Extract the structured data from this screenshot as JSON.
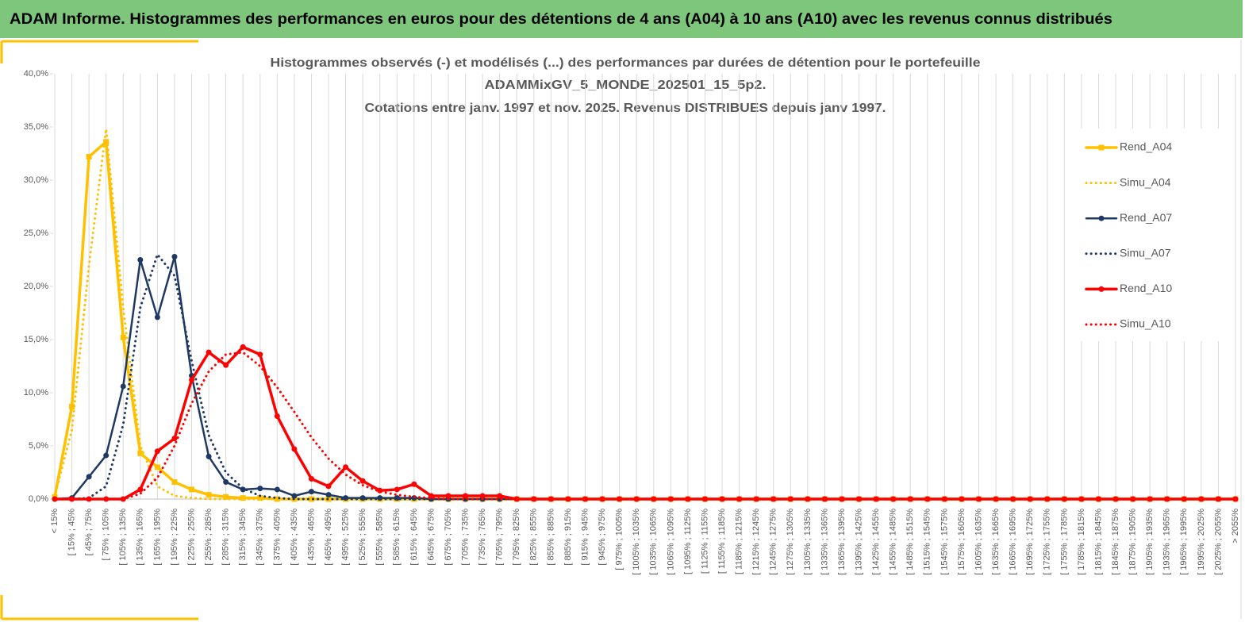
{
  "header": {
    "title": "ADAM Informe. Histogrammes des performances en euros pour des détentions de 4 ans (A04) à 10 ans (A10) avec les revenus connus distribués"
  },
  "chart_data": {
    "type": "line",
    "title": [
      "Histogrammes observés (-) et modélisés (...) des performances  par durées de détention pour le portefeuille",
      "ADAMMixGV_5_MONDE_202501_15_5p2.",
      "Cotations entre janv. 1997 et nov. 2025. Revenus DISTRIBUES depuis janv 1997."
    ],
    "categories": [
      "< 15%",
      "[ 15% ; 45%",
      "[ 45% ; 75%",
      "[ 75% ; 105%",
      "[ 105% ; 135%",
      "[ 135% ; 165%",
      "[ 165% ; 195%",
      "[ 195% ; 225%",
      "[ 225% ; 255%",
      "[ 255% ; 285%",
      "[ 285% ; 315%",
      "[ 315% ; 345%",
      "[ 345% ; 375%",
      "[ 375% ; 405%",
      "[ 405% ; 435%",
      "[ 435% ; 465%",
      "[ 465% ; 495%",
      "[ 495% ; 525%",
      "[ 525% ; 555%",
      "[ 555% ; 585%",
      "[ 585% ; 615%",
      "[ 615% ; 645%",
      "[ 645% ; 675%",
      "[ 675% ; 705%",
      "[ 705% ; 735%",
      "[ 735% ; 765%",
      "[ 765% ; 795%",
      "[ 795% ; 825%",
      "[ 825% ; 855%",
      "[ 855% ; 885%",
      "[ 885% ; 915%",
      "[ 915% ; 945%",
      "[ 945% ; 975%",
      "[ 975% ; 1005%",
      "[ 1005% ; 1035%",
      "[ 1035% ; 1065%",
      "[ 1065% ; 1095%",
      "[ 1095% ; 1125%",
      "[ 1125% ; 1155%",
      "[ 1155% ; 1185%",
      "[ 1185% ; 1215%",
      "[ 1215% ; 1245%",
      "[ 1245% ; 1275%",
      "[ 1275% ; 1305%",
      "[ 1305% ; 1335%",
      "[ 1335% ; 1365%",
      "[ 1365% ; 1395%",
      "[ 1395% ; 1425%",
      "[ 1425% ; 1455%",
      "[ 1455% ; 1485%",
      "[ 1485% ; 1515%",
      "[ 1515% ; 1545%",
      "[ 1545% ; 1575%",
      "[ 1575% ; 1605%",
      "[ 1605% ; 1635%",
      "[ 1635% ; 1665%",
      "[ 1665% ; 1695%",
      "[ 1695% ; 1725%",
      "[ 1725% ; 1755%",
      "[ 1755% ; 1785%",
      "[ 1785% ; 1815%",
      "[ 1815% ; 1845%",
      "[ 1845% ; 1875%",
      "[ 1875% ; 1905%",
      "[ 1905% ; 1935%",
      "[ 1935% ; 1965%",
      "[ 1965% ; 1995%",
      "[ 1995% ; 2025%",
      "[ 2025% ; 2055%",
      "> 2055%"
    ],
    "series": [
      {
        "name": "Rend_A04",
        "color": "#FFC000",
        "style": "solid",
        "marker": "square",
        "width": 3.5,
        "values": [
          0.2,
          8.7,
          32.2,
          33.6,
          15.2,
          4.3,
          3.0,
          1.6,
          0.9,
          0.4,
          0.2,
          0.1,
          0.1,
          0,
          0,
          0,
          0,
          0,
          0,
          0,
          0,
          0,
          0,
          0,
          0,
          0,
          0,
          0,
          0,
          0,
          0,
          0,
          0,
          0,
          0,
          0,
          0,
          0,
          0,
          0,
          0,
          0,
          0,
          0,
          0,
          0,
          0,
          0,
          0,
          0,
          0,
          0,
          0,
          0,
          0,
          0,
          0,
          0,
          0,
          0,
          0,
          0,
          0,
          0,
          0,
          0,
          0,
          0,
          0,
          0
        ]
      },
      {
        "name": "Simu_A04",
        "color": "#FFC000",
        "style": "dotted",
        "width": 3,
        "values": [
          0.3,
          6.5,
          22,
          34.8,
          18,
          5,
          1.2,
          0.3,
          0.1,
          0,
          0,
          0,
          0,
          0,
          0,
          0,
          0,
          0,
          0,
          0,
          0,
          0,
          0,
          0,
          0,
          0,
          0,
          0,
          0,
          0,
          0,
          0,
          0,
          0,
          0,
          0,
          0,
          0,
          0,
          0,
          0,
          0,
          0,
          0,
          0,
          0,
          0,
          0,
          0,
          0,
          0,
          0,
          0,
          0,
          0,
          0,
          0,
          0,
          0,
          0,
          0,
          0,
          0,
          0,
          0,
          0,
          0,
          0,
          0,
          0
        ]
      },
      {
        "name": "Rend_A07",
        "color": "#1F3864",
        "style": "solid",
        "marker": "circle",
        "width": 2.5,
        "values": [
          0,
          0.1,
          2.1,
          4.1,
          10.6,
          22.5,
          17.1,
          22.8,
          11.6,
          4.0,
          1.6,
          0.9,
          1.0,
          0.9,
          0.3,
          0.7,
          0.4,
          0.1,
          0.1,
          0.1,
          0.1,
          0.1,
          0,
          0,
          0,
          0,
          0,
          0,
          0,
          0,
          0,
          0,
          0,
          0,
          0,
          0,
          0,
          0,
          0,
          0,
          0,
          0,
          0,
          0,
          0,
          0,
          0,
          0,
          0,
          0,
          0,
          0,
          0,
          0,
          0,
          0,
          0,
          0,
          0,
          0,
          0,
          0,
          0,
          0,
          0,
          0,
          0,
          0,
          0,
          0
        ]
      },
      {
        "name": "Simu_A07",
        "color": "#1F3864",
        "style": "dotted",
        "width": 3,
        "values": [
          0,
          0,
          0.1,
          1.2,
          7,
          18,
          23,
          21,
          13,
          6,
          2.5,
          1,
          0.3,
          0.1,
          0,
          0,
          0,
          0,
          0,
          0,
          0,
          0,
          0,
          0,
          0,
          0,
          0,
          0,
          0,
          0,
          0,
          0,
          0,
          0,
          0,
          0,
          0,
          0,
          0,
          0,
          0,
          0,
          0,
          0,
          0,
          0,
          0,
          0,
          0,
          0,
          0,
          0,
          0,
          0,
          0,
          0,
          0,
          0,
          0,
          0,
          0,
          0,
          0,
          0,
          0,
          0,
          0,
          0,
          0,
          0
        ]
      },
      {
        "name": "Rend_A10",
        "color": "#FF0000",
        "style": "solid",
        "marker": "circle",
        "width": 3.5,
        "values": [
          0,
          0,
          0,
          0,
          0,
          0.9,
          4.5,
          5.7,
          11.2,
          13.8,
          12.6,
          14.3,
          13.6,
          7.8,
          4.7,
          1.9,
          1.2,
          3.0,
          1.7,
          0.8,
          0.9,
          1.4,
          0.3,
          0.3,
          0.3,
          0.3,
          0.3,
          0,
          0,
          0,
          0,
          0,
          0,
          0,
          0,
          0,
          0,
          0,
          0,
          0,
          0,
          0,
          0,
          0,
          0,
          0,
          0,
          0,
          0,
          0,
          0,
          0,
          0,
          0,
          0,
          0,
          0,
          0,
          0,
          0,
          0,
          0,
          0,
          0,
          0,
          0,
          0,
          0,
          0,
          0
        ]
      },
      {
        "name": "Simu_A10",
        "color": "#FF0000",
        "style": "dotted",
        "width": 3,
        "values": [
          0,
          0,
          0,
          0,
          0,
          0.5,
          2,
          5,
          9,
          12,
          13.6,
          13.8,
          12.5,
          10.5,
          8.2,
          5.8,
          3.8,
          2.3,
          1.3,
          0.7,
          0.4,
          0.2,
          0.1,
          0,
          0,
          0,
          0,
          0,
          0,
          0,
          0,
          0,
          0,
          0,
          0,
          0,
          0,
          0,
          0,
          0,
          0,
          0,
          0,
          0,
          0,
          0,
          0,
          0,
          0,
          0,
          0,
          0,
          0,
          0,
          0,
          0,
          0,
          0,
          0,
          0,
          0,
          0,
          0,
          0,
          0,
          0,
          0,
          0,
          0,
          0
        ]
      }
    ],
    "ylim": [
      0,
      40
    ],
    "yticks": [
      {
        "value": 0,
        "label": "0,0%"
      },
      {
        "value": 5,
        "label": "5,0%"
      },
      {
        "value": 10,
        "label": "10,0%"
      },
      {
        "value": 15,
        "label": "15,0%"
      },
      {
        "value": 20,
        "label": "20,0%"
      },
      {
        "value": 25,
        "label": "25,0%"
      },
      {
        "value": 30,
        "label": "30,0%"
      },
      {
        "value": 35,
        "label": "35,0%"
      },
      {
        "value": 40,
        "label": "40,0%"
      }
    ],
    "xgrid": true,
    "legend": "right"
  }
}
